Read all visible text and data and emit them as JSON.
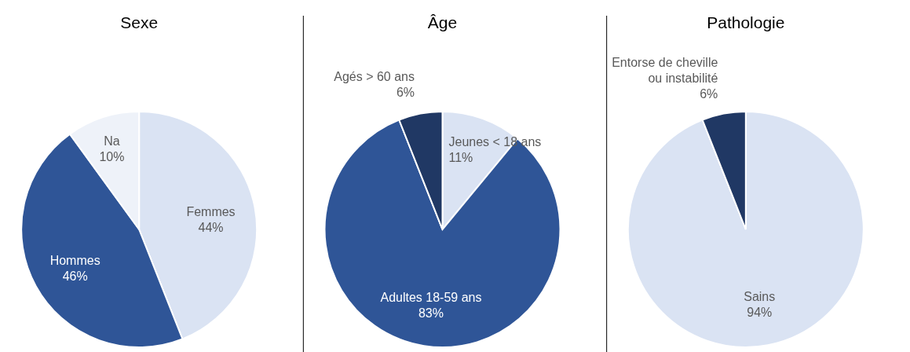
{
  "chart_data": [
    {
      "type": "pie",
      "title": "Sexe",
      "categories": [
        "Femmes",
        "Hommes",
        "Na"
      ],
      "values": [
        44,
        46,
        10
      ],
      "value_labels": [
        "44%",
        "46%",
        "10%"
      ],
      "colors": [
        "#dae3f3",
        "#2f5597",
        "#eef2f9"
      ]
    },
    {
      "type": "pie",
      "title": "Âge",
      "categories": [
        "Jeunes < 18 ans",
        "Adultes 18-59 ans",
        "Agés > 60 ans"
      ],
      "values": [
        11,
        83,
        6
      ],
      "value_labels": [
        "11%",
        "83%",
        "6%"
      ],
      "colors": [
        "#dae3f3",
        "#2f5597",
        "#203864"
      ]
    },
    {
      "type": "pie",
      "title": "Pathologie",
      "categories": [
        "Sains",
        "Entorse de cheville ou instabilité"
      ],
      "values": [
        94,
        6
      ],
      "value_labels": [
        "94%",
        "6%"
      ],
      "colors": [
        "#dae3f3",
        "#203864"
      ]
    }
  ]
}
